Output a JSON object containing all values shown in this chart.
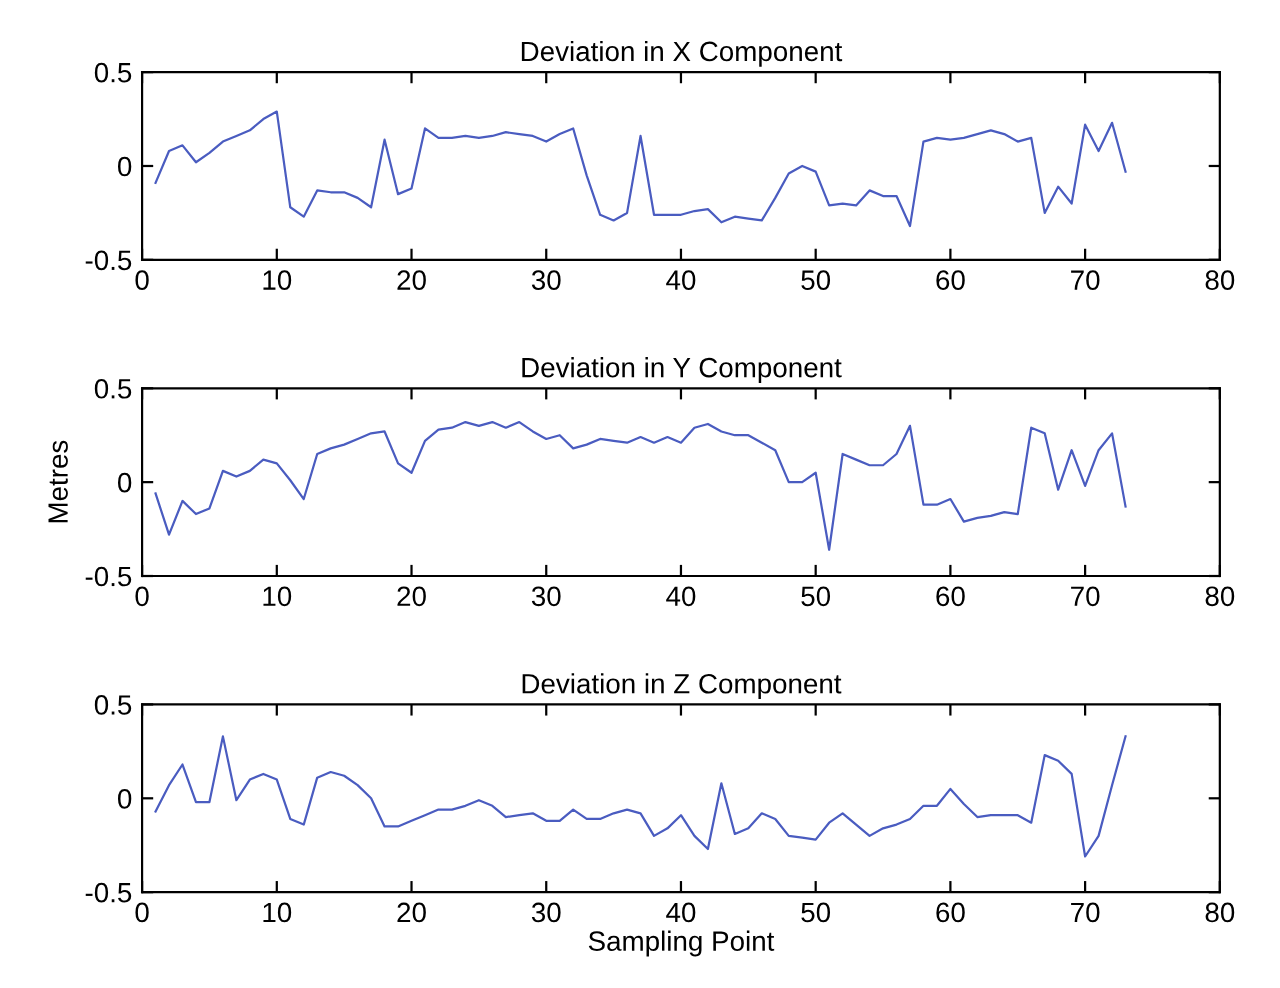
{
  "chart_data": [
    {
      "type": "line",
      "title": "Deviation in X Component",
      "x": [
        1,
        2,
        3,
        4,
        5,
        6,
        7,
        8,
        9,
        10,
        11,
        12,
        13,
        14,
        15,
        16,
        17,
        18,
        19,
        20,
        21,
        22,
        23,
        24,
        25,
        26,
        27,
        28,
        29,
        30,
        31,
        32,
        33,
        34,
        35,
        36,
        37,
        38,
        39,
        40,
        41,
        42,
        43,
        44,
        45,
        46,
        47,
        48,
        49,
        50,
        51,
        52,
        53,
        54,
        55,
        56,
        57,
        58,
        59,
        60,
        61,
        62,
        63,
        64,
        65,
        66,
        67,
        68,
        69,
        70,
        71,
        72,
        73
      ],
      "series": [
        {
          "color": "#4a5cc0",
          "values": [
            -0.09,
            0.08,
            0.11,
            0.02,
            0.07,
            0.13,
            0.16,
            0.19,
            0.25,
            0.29,
            -0.22,
            -0.27,
            -0.13,
            -0.14,
            -0.14,
            -0.17,
            -0.22,
            0.14,
            -0.15,
            -0.12,
            0.2,
            0.15,
            0.15,
            0.16,
            0.15,
            0.16,
            0.18,
            0.17,
            0.16,
            0.13,
            0.17,
            0.2,
            -0.05,
            -0.26,
            -0.29,
            -0.25,
            0.16,
            -0.26,
            -0.26,
            -0.26,
            -0.24,
            -0.23,
            -0.3,
            -0.27,
            -0.28,
            -0.29,
            -0.17,
            -0.04,
            0.0,
            -0.03,
            -0.21,
            -0.2,
            -0.21,
            -0.13,
            -0.16,
            -0.16,
            -0.32,
            0.13,
            0.15,
            0.14,
            0.15,
            0.17,
            0.19,
            0.17,
            0.13,
            0.15,
            -0.25,
            -0.11,
            -0.2,
            0.22,
            0.08,
            0.23,
            -0.03
          ]
        }
      ],
      "xlim": [
        0,
        80
      ],
      "xticks": [
        0,
        10,
        20,
        30,
        40,
        50,
        60,
        70,
        80
      ],
      "ylim": [
        -0.5,
        0.5
      ],
      "yticks": [
        -0.5,
        0,
        0.5
      ],
      "grid": false,
      "marker": "none",
      "line_style": "solid"
    },
    {
      "type": "line",
      "title": "Deviation in Y Component",
      "ylabel": "Metres",
      "x": [
        1,
        2,
        3,
        4,
        5,
        6,
        7,
        8,
        9,
        10,
        11,
        12,
        13,
        14,
        15,
        16,
        17,
        18,
        19,
        20,
        21,
        22,
        23,
        24,
        25,
        26,
        27,
        28,
        29,
        30,
        31,
        32,
        33,
        34,
        35,
        36,
        37,
        38,
        39,
        40,
        41,
        42,
        43,
        44,
        45,
        46,
        47,
        48,
        49,
        50,
        51,
        52,
        53,
        54,
        55,
        56,
        57,
        58,
        59,
        60,
        61,
        62,
        63,
        64,
        65,
        66,
        67,
        68,
        69,
        70,
        71,
        72,
        73
      ],
      "series": [
        {
          "color": "#4a5cc0",
          "values": [
            -0.06,
            -0.28,
            -0.1,
            -0.17,
            -0.14,
            0.06,
            0.03,
            0.06,
            0.12,
            0.1,
            0.01,
            -0.09,
            0.15,
            0.18,
            0.2,
            0.23,
            0.26,
            0.27,
            0.1,
            0.05,
            0.22,
            0.28,
            0.29,
            0.32,
            0.3,
            0.32,
            0.29,
            0.32,
            0.27,
            0.23,
            0.25,
            0.18,
            0.2,
            0.23,
            0.22,
            0.21,
            0.24,
            0.21,
            0.24,
            0.21,
            0.29,
            0.31,
            0.27,
            0.25,
            0.25,
            0.21,
            0.17,
            0.0,
            0.0,
            0.05,
            -0.36,
            0.15,
            0.12,
            0.09,
            0.09,
            0.15,
            0.3,
            -0.12,
            -0.12,
            -0.09,
            -0.21,
            -0.19,
            -0.18,
            -0.16,
            -0.17,
            0.29,
            0.26,
            -0.04,
            0.17,
            -0.02,
            0.17,
            0.26,
            -0.13
          ]
        }
      ],
      "xlim": [
        0,
        80
      ],
      "xticks": [
        0,
        10,
        20,
        30,
        40,
        50,
        60,
        70,
        80
      ],
      "ylim": [
        -0.5,
        0.5
      ],
      "yticks": [
        -0.5,
        0,
        0.5
      ],
      "grid": false,
      "marker": "none",
      "line_style": "solid"
    },
    {
      "type": "line",
      "title": "Deviation in Z Component",
      "xlabel": "Sampling Point",
      "x": [
        1,
        2,
        3,
        4,
        5,
        6,
        7,
        8,
        9,
        10,
        11,
        12,
        13,
        14,
        15,
        16,
        17,
        18,
        19,
        20,
        21,
        22,
        23,
        24,
        25,
        26,
        27,
        28,
        29,
        30,
        31,
        32,
        33,
        34,
        35,
        36,
        37,
        38,
        39,
        40,
        41,
        42,
        43,
        44,
        45,
        46,
        47,
        48,
        49,
        50,
        51,
        52,
        53,
        54,
        55,
        56,
        57,
        58,
        59,
        60,
        61,
        62,
        63,
        64,
        65,
        66,
        67,
        68,
        69,
        70,
        71,
        72,
        73
      ],
      "series": [
        {
          "color": "#4a5cc0",
          "values": [
            -0.07,
            0.07,
            0.18,
            -0.02,
            -0.02,
            0.33,
            -0.01,
            0.1,
            0.13,
            0.1,
            -0.11,
            -0.14,
            0.11,
            0.14,
            0.12,
            0.07,
            0.0,
            -0.15,
            -0.15,
            -0.12,
            -0.09,
            -0.06,
            -0.06,
            -0.04,
            -0.01,
            -0.04,
            -0.1,
            -0.09,
            -0.08,
            -0.12,
            -0.12,
            -0.06,
            -0.11,
            -0.11,
            -0.08,
            -0.06,
            -0.08,
            -0.2,
            -0.16,
            -0.09,
            -0.2,
            -0.27,
            0.08,
            -0.19,
            -0.16,
            -0.08,
            -0.11,
            -0.2,
            -0.21,
            -0.22,
            -0.13,
            -0.08,
            -0.14,
            -0.2,
            -0.16,
            -0.14,
            -0.11,
            -0.04,
            -0.04,
            0.05,
            -0.03,
            -0.1,
            -0.09,
            -0.09,
            -0.09,
            -0.13,
            0.23,
            0.2,
            0.13,
            -0.31,
            -0.2,
            0.07,
            0.33
          ]
        }
      ],
      "xlim": [
        0,
        80
      ],
      "xticks": [
        0,
        10,
        20,
        30,
        40,
        50,
        60,
        70,
        80
      ],
      "ylim": [
        -0.5,
        0.5
      ],
      "yticks": [
        -0.5,
        0,
        0.5
      ],
      "grid": false,
      "marker": "none",
      "line_style": "solid"
    }
  ]
}
